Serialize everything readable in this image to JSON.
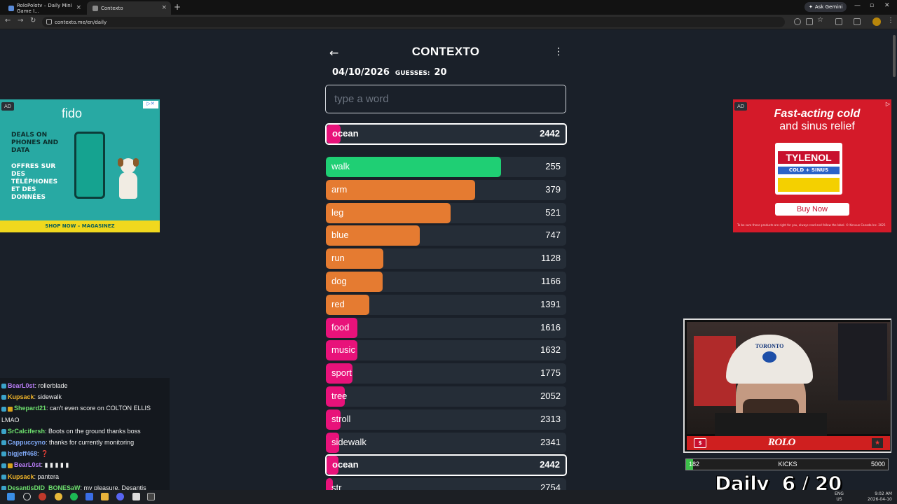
{
  "browser": {
    "tabs": [
      {
        "title": "RoloPolotv – Daily Mini Game I..."
      },
      {
        "title": "Contexto"
      }
    ],
    "url": "contexto.me/en/daily",
    "gemini_label": "Ask Gemini"
  },
  "game": {
    "title": "CONTEXTO",
    "date": "04/10/2026",
    "guesses_label": "GUESSES:",
    "guesses_count": "20",
    "input_placeholder": "type a word",
    "last_guess": {
      "word": "ocean",
      "rank": "2442"
    },
    "guesses": [
      {
        "word": "walk",
        "rank": "255",
        "color": "#1fcf74",
        "fill": 0.73
      },
      {
        "word": "arm",
        "rank": "379",
        "color": "#e57b31",
        "fill": 0.62
      },
      {
        "word": "leg",
        "rank": "521",
        "color": "#e57b31",
        "fill": 0.52
      },
      {
        "word": "blue",
        "rank": "747",
        "color": "#e57b31",
        "fill": 0.39
      },
      {
        "word": "run",
        "rank": "1128",
        "color": "#e57b31",
        "fill": 0.24
      },
      {
        "word": "dog",
        "rank": "1166",
        "color": "#e57b31",
        "fill": 0.235
      },
      {
        "word": "red",
        "rank": "1391",
        "color": "#e57b31",
        "fill": 0.18
      },
      {
        "word": "food",
        "rank": "1616",
        "color": "#e8127a",
        "fill": 0.13
      },
      {
        "word": "music",
        "rank": "1632",
        "color": "#e8127a",
        "fill": 0.13
      },
      {
        "word": "sport",
        "rank": "1775",
        "color": "#e8127a",
        "fill": 0.11
      },
      {
        "word": "tree",
        "rank": "2052",
        "color": "#e8127a",
        "fill": 0.08
      },
      {
        "word": "stroll",
        "rank": "2313",
        "color": "#e8127a",
        "fill": 0.06
      },
      {
        "word": "sidewalk",
        "rank": "2341",
        "color": "#e8127a",
        "fill": 0.055
      },
      {
        "word": "ocean",
        "rank": "2442",
        "color": "#e8127a",
        "fill": 0.05,
        "highlight": true
      },
      {
        "word": "str",
        "rank": "2754",
        "color": "#e8127a",
        "fill": 0.03
      }
    ]
  },
  "ads": {
    "left": {
      "badge": "AD",
      "logo": "fido",
      "text_en": "DEALS ON PHONES AND DATA",
      "text_fr": "OFFRES SUR DES TÉLÉPHONES ET DES DONNÉES",
      "cta": "SHOP NOW – MAGASINEZ"
    },
    "right": {
      "badge": "AD",
      "headline_1": "Fast-acting cold",
      "headline_2": "and sinus relief",
      "brand": "TYLENOL",
      "sub": "COLD + SINUS",
      "cta": "Buy Now",
      "fine_print": "To be sure these products are right for you, always read and follow the label. © Kenvue Canada Inc. 2025"
    }
  },
  "chat": [
    {
      "user": "BearL0st",
      "color": "#b77cf5",
      "msg": ": rollerblade",
      "badges": 1
    },
    {
      "user": "Kupsack",
      "color": "#f0b429",
      "msg": ": sidewalk",
      "badges": 0
    },
    {
      "user": "Shepard21",
      "color": "#6ee06e",
      "msg": ": can't even score on COLTON ELLIS",
      "badges": 2
    },
    {
      "user": "",
      "color": "#eee",
      "msg": "LMAO",
      "badges": 0
    },
    {
      "user": "SrCalcifersh",
      "color": "#6ee06e",
      "msg": ": Boots on the ground thanks boss",
      "badges": 1
    },
    {
      "user": "Cappuccyno",
      "color": "#7fa8f5",
      "msg": ": thanks for currently monitoring",
      "badges": 1
    },
    {
      "user": "bigjeff468",
      "color": "#7fa8f5",
      "msg": ": ❓",
      "badges": 1
    },
    {
      "user": "BearL0st",
      "color": "#b77cf5",
      "msg": ": ▮ ▮ ▮ ▮ ▮",
      "badges": 2
    },
    {
      "user": "Kupsack",
      "color": "#f0b429",
      "msg": ": pantera",
      "badges": 0
    },
    {
      "user": "DesantisDID_BONESaW",
      "color": "#6ee06e",
      "msg": ": my pleasure, Desantis",
      "badges": 1
    },
    {
      "user": "",
      "color": "#eee",
      "msg": "out",
      "badges": 0
    }
  ],
  "stream": {
    "cap_text": "TORONTO",
    "kick_logo": "$",
    "brand_logo": "ROLO",
    "kicks_current": "182",
    "kicks_label": "KICKS",
    "kicks_goal": "5000",
    "kicks_progress": 0.036,
    "daily_overlay": "Daily  6 / 20"
  },
  "taskbar": {
    "lang_1": "ENG",
    "lang_2": "US",
    "time": "9:02 AM",
    "date": "2026-04-10"
  }
}
